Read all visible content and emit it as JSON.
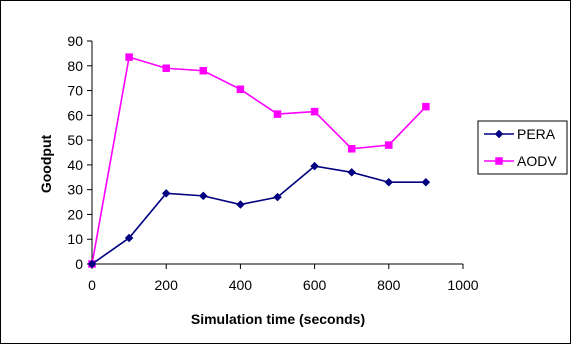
{
  "chart_data": {
    "type": "line",
    "title": "",
    "xlabel": "Simulation time (seconds)",
    "ylabel": "Goodput",
    "xlim": [
      0,
      1000
    ],
    "ylim": [
      0,
      90
    ],
    "xticks": [
      0,
      200,
      400,
      600,
      800,
      1000
    ],
    "yticks": [
      0,
      10,
      20,
      30,
      40,
      50,
      60,
      70,
      80,
      90
    ],
    "grid": false,
    "legend_position": "right",
    "x": [
      0,
      100,
      200,
      300,
      400,
      500,
      600,
      700,
      800,
      900
    ],
    "series": [
      {
        "name": "PERA",
        "color": "#000080",
        "marker": "diamond",
        "values": [
          0,
          10.5,
          28.5,
          27.5,
          24,
          27,
          39.5,
          37,
          33,
          33
        ]
      },
      {
        "name": "AODV",
        "color": "#ff00ff",
        "marker": "square",
        "values": [
          0,
          83.5,
          79,
          78,
          70.5,
          60.5,
          61.5,
          46.5,
          48,
          63.5
        ]
      }
    ]
  }
}
